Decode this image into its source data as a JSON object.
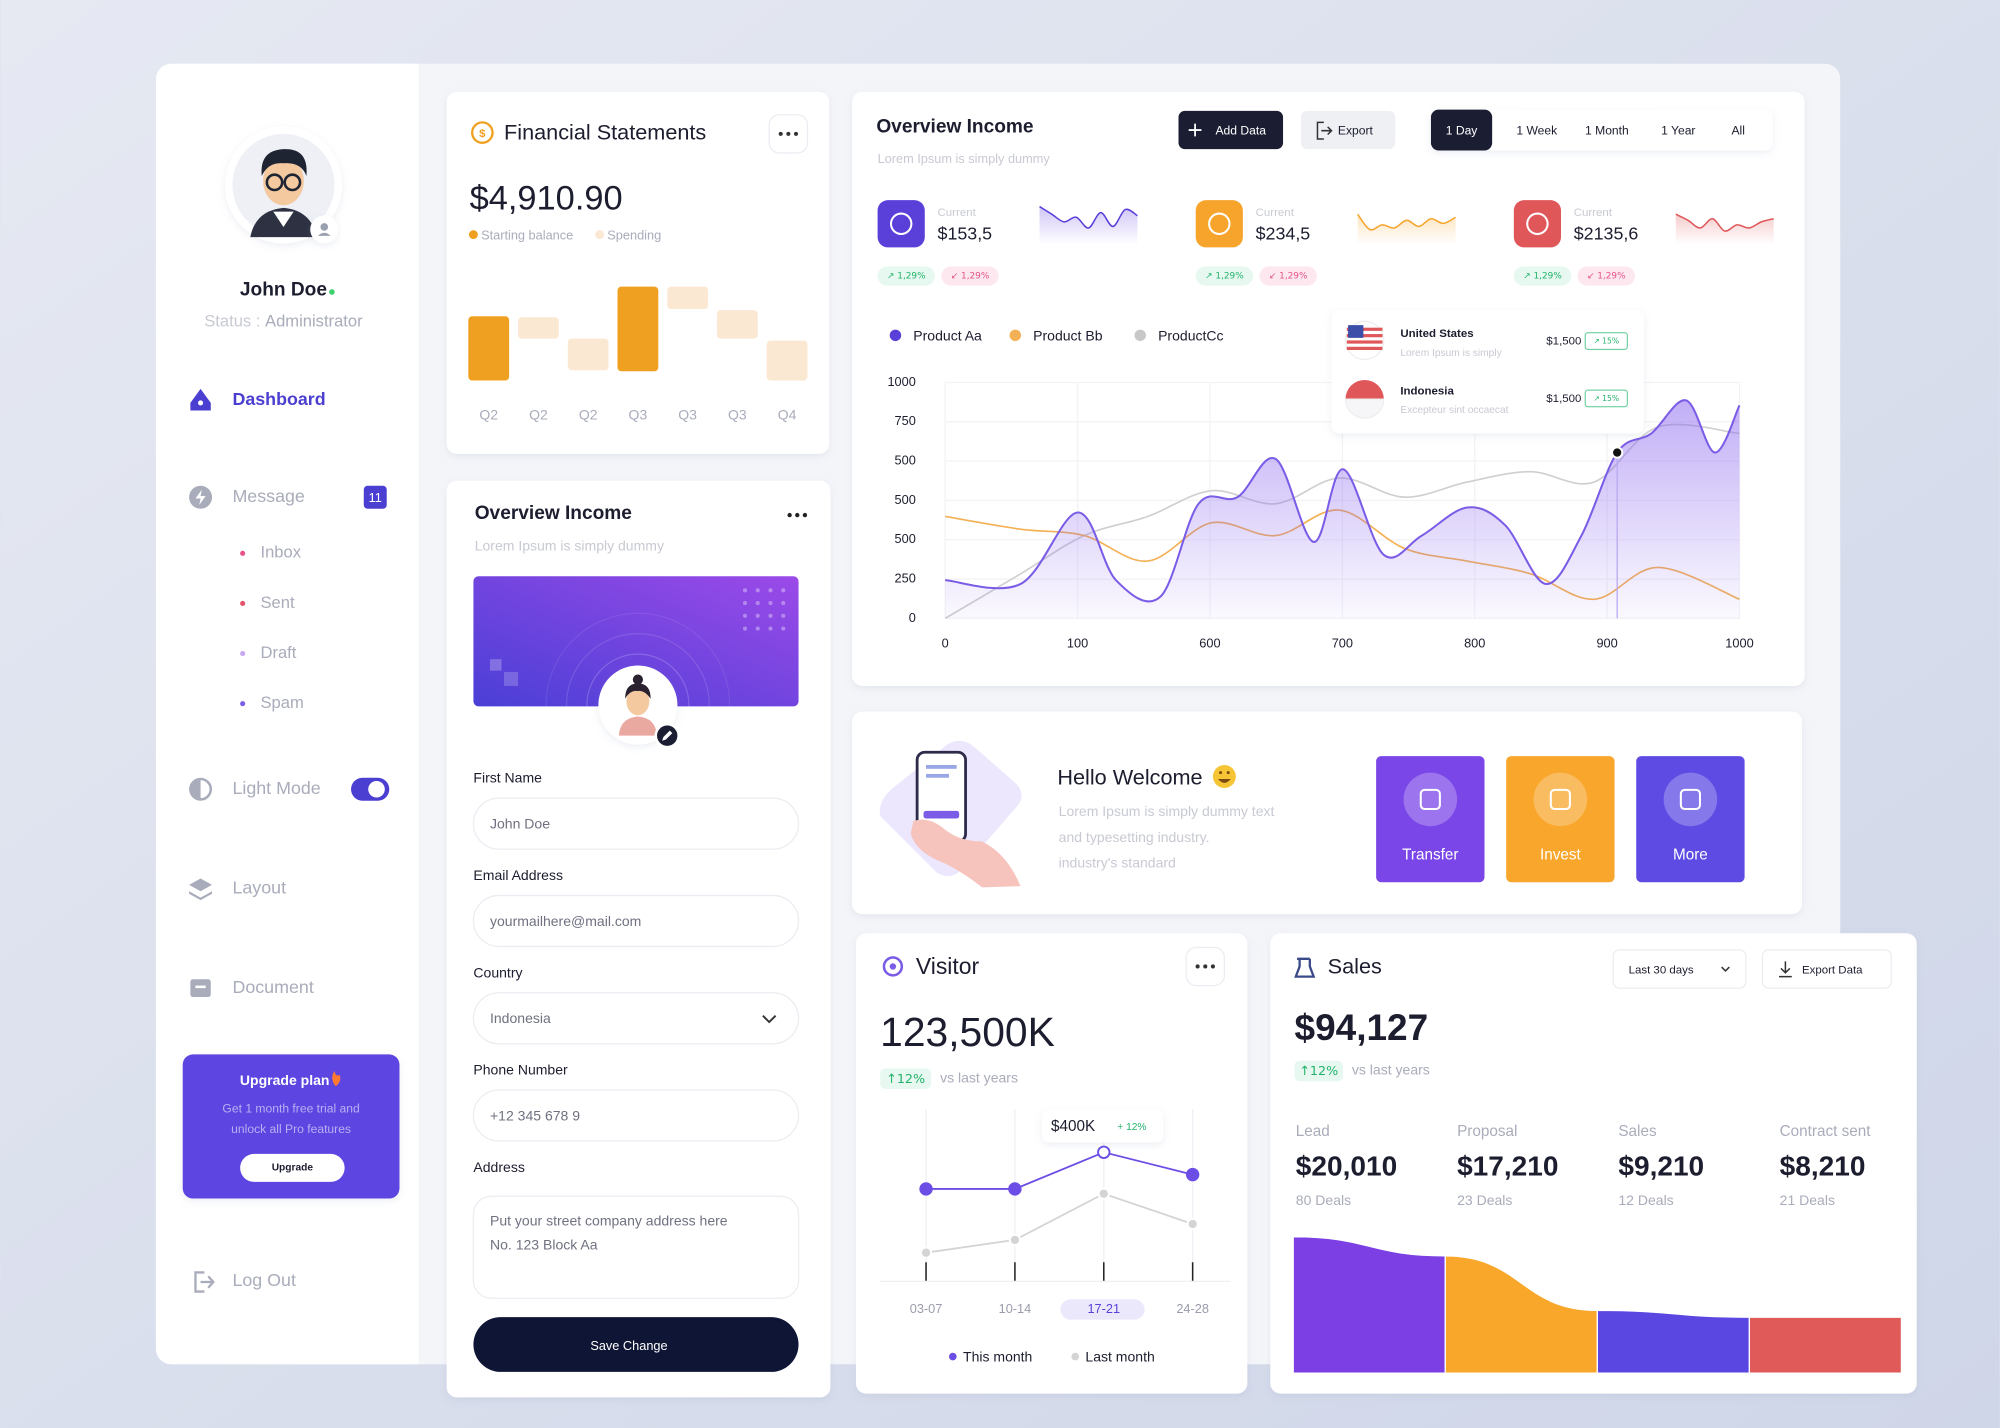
{
  "sidebar": {
    "user_name": "John Doe",
    "status_label": "Status :",
    "status_value": "Administrator",
    "dashboard": "Dashboard",
    "message": "Message",
    "message_badge": 11,
    "message_items": [
      {
        "label": "Inbox",
        "color": "#e5538a"
      },
      {
        "label": "Sent",
        "color": "#e5536a"
      },
      {
        "label": "Draft",
        "color": "#c9a8f0"
      },
      {
        "label": "Spam",
        "color": "#7b5ce6"
      }
    ],
    "light_mode": "Light Mode",
    "layout": "Layout",
    "document": "Document",
    "upgrade": {
      "title": "Upgrade plan",
      "text": [
        "Get 1 month free trial and",
        "unlock all Pro features"
      ],
      "button": "Upgrade"
    },
    "logout": "Log Out"
  },
  "financial": {
    "title": "Financial Statements",
    "amount": "$4,910.90",
    "chart": {
      "type": "floating-bar",
      "ylim": [
        0,
        100
      ],
      "categories": [
        "Q2",
        "Q2",
        "Q2",
        "Q3",
        "Q3",
        "Q3",
        "Q4"
      ],
      "series": [
        {
          "name": "Starting balance",
          "color": "#f0a020",
          "values": [
            [
              2,
              65
            ],
            null,
            null,
            [
              11,
              94
            ],
            null,
            null,
            null
          ]
        },
        {
          "name": "Spending",
          "color": "#fbe8d2",
          "values": [
            null,
            [
              43,
              64
            ],
            [
              12,
              43
            ],
            null,
            [
              72,
              94
            ],
            [
              43,
              71
            ],
            [
              2,
              41
            ]
          ]
        }
      ]
    }
  },
  "overview_income": {
    "title": "Overview Income",
    "subtitle": "Lorem Ipsum is simply dummy",
    "add_button": "Add Data",
    "export_button": "Export",
    "tabs": [
      "1 Day",
      "1 Week",
      "1 Month",
      "1 Year",
      "All"
    ],
    "active_tab": 0,
    "stats": [
      {
        "label": "Current",
        "value": "$153,5",
        "up": "↗ 1,29%",
        "down": "↙ 1,29%",
        "color": "#5b3fd9"
      },
      {
        "label": "Current",
        "value": "$234,5",
        "up": "↗ 1,29%",
        "down": "↙ 1,29%",
        "color": "#f6a42c"
      },
      {
        "label": "Current",
        "value": "$2135,6",
        "up": "↗ 1,29%",
        "down": "↙ 1,29%",
        "color": "#e0575a"
      }
    ],
    "chart": {
      "type": "line",
      "legend_position": "top-left",
      "grid": true,
      "xlim": [
        0,
        1000
      ],
      "ylim": [
        0,
        1000
      ],
      "x_labels": [
        "0",
        "100",
        "600",
        "700",
        "800",
        "900",
        "1000"
      ],
      "y_labels": [
        "0",
        "250",
        "500",
        "500",
        "500",
        "750",
        "1000"
      ],
      "marker_index": 16,
      "series": [
        {
          "name": "Product Aa",
          "color": "#7b5ce6",
          "area": true,
          "x": [
            0,
            95,
            167,
            215,
            271,
            319,
            368,
            416,
            464,
            501,
            552,
            600,
            657,
            705,
            756,
            801,
            846,
            889,
            933,
            969,
            1000
          ],
          "values": [
            162,
            146,
            449,
            162,
            92,
            486,
            514,
            676,
            324,
            632,
            270,
            351,
            470,
            395,
            146,
            351,
            703,
            784,
            924,
            703,
            903
          ]
        },
        {
          "name": "Product Bb",
          "color": "#f4b055",
          "area": false,
          "x": [
            0,
            95,
            175,
            255,
            335,
            416,
            496,
            578,
            657,
            737,
            817,
            897,
            1000
          ],
          "values": [
            432,
            378,
            351,
            243,
            405,
            351,
            459,
            297,
            243,
            189,
            81,
            216,
            81
          ]
        },
        {
          "name": "ProductCc",
          "color": "#cfcfcf",
          "area": false,
          "x": [
            0,
            95,
            175,
            255,
            335,
            416,
            496,
            578,
            657,
            737,
            817,
            897,
            1000
          ],
          "values": [
            0,
            189,
            351,
            432,
            541,
            486,
            595,
            514,
            578,
            622,
            578,
            811,
            784
          ]
        }
      ]
    },
    "tooltip": [
      {
        "country": "United States",
        "note": "Lorem Ipsum is simply",
        "amount": "$1,500",
        "change": "↗ 15%"
      },
      {
        "country": "Indonesia",
        "note": "Excepteur sint occaecat",
        "amount": "$1,500",
        "change": "↗ 15%"
      }
    ]
  },
  "profile_form": {
    "title": "Overview Income",
    "subtitle": "Lorem Ipsum is simply dummy",
    "fields": [
      {
        "label": "First Name",
        "value": [
          "John Doe"
        ]
      },
      {
        "label": "Email Address",
        "value": [
          "yourmailhere@mail.com"
        ]
      },
      {
        "label": "Country",
        "value": [
          "Indonesia"
        ]
      },
      {
        "label": "Phone Number",
        "value": [
          "+12 345 678 9"
        ]
      },
      {
        "label": "Address",
        "value": [
          "Put your street company address here",
          "No. 123 Block Aa"
        ]
      }
    ],
    "button": "Save Change"
  },
  "welcome": {
    "title": "Hello Welcome",
    "text": [
      "Lorem Ipsum is simply dummy text",
      "and typesetting industry.",
      "industry's standard"
    ],
    "actions": [
      {
        "label": "Transfer",
        "color": "#7a46e8"
      },
      {
        "label": "Invest",
        "color": "#f8a62c"
      },
      {
        "label": "More",
        "color": "#5d4be3"
      }
    ]
  },
  "visitor": {
    "title": "Visitor",
    "total": "123,500K",
    "change": "↑12%",
    "comparison": "vs last years",
    "tooltip": {
      "value": "$400K",
      "change": "+ 12%"
    },
    "chart": {
      "type": "line",
      "ylim": [
        0,
        100
      ],
      "categories": [
        "03-07",
        "10-14",
        "17-21",
        "24-28"
      ],
      "active_category": 2,
      "series": [
        {
          "name": "This month",
          "color": "#6c4de6",
          "values": [
            58,
            58,
            81,
            67
          ]
        },
        {
          "name": "Last month",
          "color": "#d4d4d4",
          "values": [
            18,
            26,
            55,
            36
          ]
        }
      ]
    }
  },
  "sales": {
    "title": "Sales",
    "period": "Last 30 days",
    "export": "Export Data",
    "total": "$94,127",
    "change": "↑12%",
    "comparison": "vs last years",
    "chart": {
      "type": "funnel",
      "categories": [
        "Lead",
        "Proposal",
        "Sales",
        "Contract sent"
      ],
      "values": [
        20010,
        17210,
        9210,
        8210
      ],
      "value_labels": [
        "$20,010",
        "$17,210",
        "$9,210",
        "$8,210"
      ],
      "deals": [
        "80 Deals",
        "23 Deals",
        "12 Deals",
        "21 Deals"
      ],
      "colors": [
        "#7b3fe4",
        "#f9a72b",
        "#5a46e0",
        "#e05a5a"
      ]
    }
  }
}
